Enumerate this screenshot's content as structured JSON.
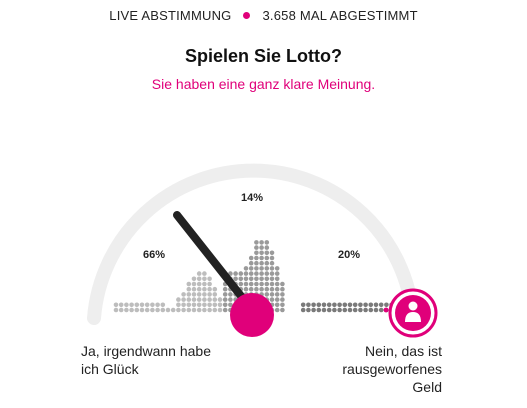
{
  "status": {
    "live_label": "LIVE ABSTIMMUNG",
    "votes_label": "3.658 MAL ABGESTIMMT"
  },
  "poll": {
    "question": "Spielen Sie Lotto?",
    "subtitle": "Sie haben eine ganz klare Meinung."
  },
  "results": [
    {
      "percent_label": "66%",
      "value": 66
    },
    {
      "percent_label": "14%",
      "value": 14
    },
    {
      "percent_label": "20%",
      "value": 20
    }
  ],
  "answers": {
    "left": [
      "Ja, irgendwann habe",
      "ich Glück"
    ],
    "right": [
      "Nein, das ist",
      "rausgeworfenes",
      "Geld"
    ]
  },
  "user_position": 1.0,
  "colors": {
    "accent": "#e0007a",
    "needle": "#222222",
    "dots_light": "#bdbdbd",
    "dots_mid": "#9a9a9a",
    "dots_dark": "#7a7a7a",
    "arc": "#eeeeee"
  },
  "icons": {
    "live_indicator": "dot",
    "user_marker": "person-icon"
  }
}
